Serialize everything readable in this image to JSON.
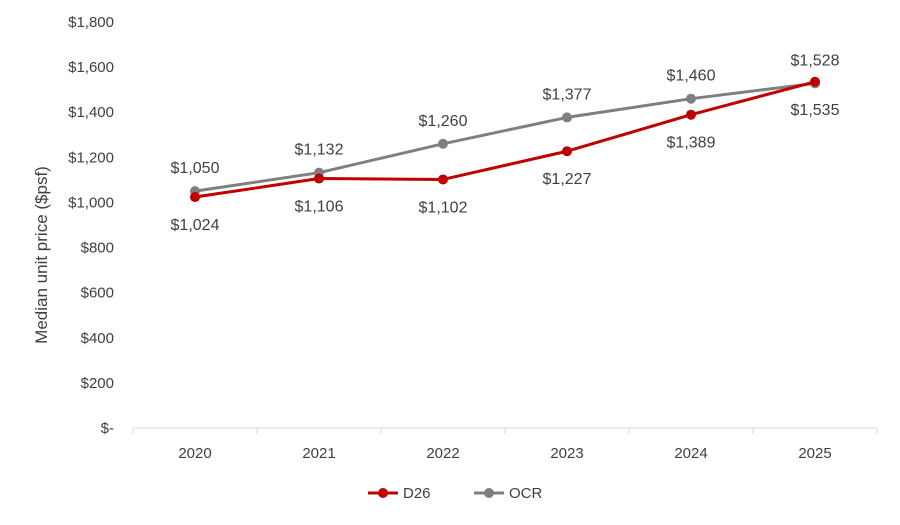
{
  "chart_data": {
    "type": "line",
    "categories": [
      "2020",
      "2021",
      "2022",
      "2023",
      "2024",
      "2025"
    ],
    "ylabel": "Median unit  price ($psf)",
    "xlabel": "",
    "ylim": [
      0,
      1800
    ],
    "yticks": [
      0,
      200,
      400,
      600,
      800,
      1000,
      1200,
      1400,
      1600,
      1800
    ],
    "ytick_labels": [
      "$-",
      "$200",
      "$400",
      "$600",
      "$800",
      "$1,000",
      "$1,200",
      "$1,400",
      "$1,600",
      "$1,800"
    ],
    "grid": false,
    "legend_position": "bottom",
    "series": [
      {
        "name": "D26",
        "color": "#C00000",
        "values": [
          1024,
          1106,
          1102,
          1227,
          1389,
          1535
        ],
        "labels": [
          "$1,024",
          "$1,106",
          "$1,102",
          "$1,227",
          "$1,389",
          "$1,535"
        ],
        "label_position": "below"
      },
      {
        "name": "OCR",
        "color": "#7F7F7F",
        "values": [
          1050,
          1132,
          1260,
          1377,
          1460,
          1528
        ],
        "labels": [
          "$1,050",
          "$1,132",
          "$1,260",
          "$1,377",
          "$1,460",
          "$1,528"
        ],
        "label_position": "above"
      }
    ]
  }
}
